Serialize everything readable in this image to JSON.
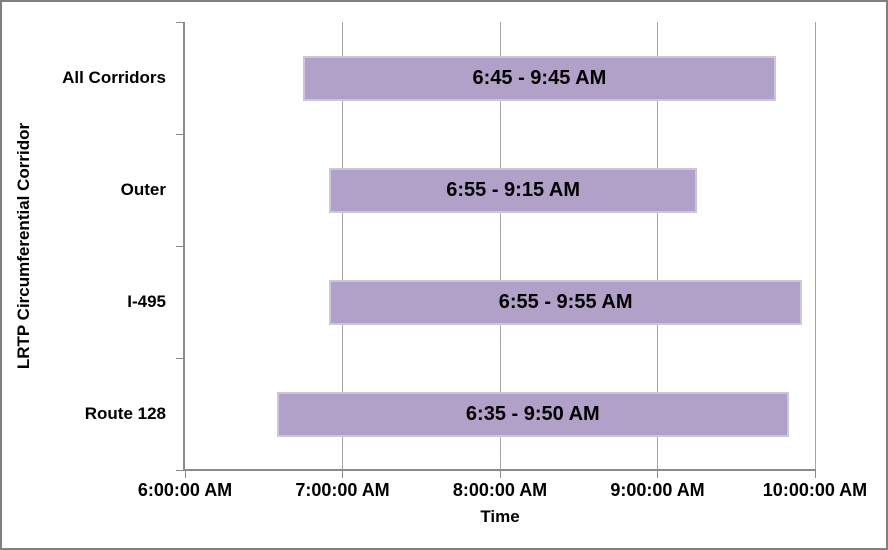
{
  "chart_data": {
    "type": "bar",
    "orientation": "horizontal-range",
    "xlabel": "Time",
    "ylabel": "LRTP Circumferential Corridor",
    "xlim_hours": [
      6,
      10
    ],
    "grid": "vertical-major",
    "legend": "none",
    "x_ticks": [
      {
        "hour": 6,
        "label": "6:00:00 AM"
      },
      {
        "hour": 7,
        "label": "7:00:00 AM"
      },
      {
        "hour": 8,
        "label": "8:00:00 AM"
      },
      {
        "hour": 9,
        "label": "9:00:00 AM"
      },
      {
        "hour": 10,
        "label": "10:00:00 AM"
      }
    ],
    "bars": [
      {
        "category": "All Corridors",
        "start_hour": 6.75,
        "end_hour": 9.75,
        "label": "6:45 - 9:45 AM"
      },
      {
        "category": "Outer",
        "start_hour": 6.9167,
        "end_hour": 9.25,
        "label": "6:55 - 9:15 AM"
      },
      {
        "category": "I-495",
        "start_hour": 6.9167,
        "end_hour": 9.9167,
        "label": "6:55 - 9:55 AM"
      },
      {
        "category": "Route 128",
        "start_hour": 6.5833,
        "end_hour": 9.8333,
        "label": "6:35 - 9:50 AM"
      }
    ],
    "colors": {
      "bar_fill": "#b1a0c7",
      "bar_border": "#cdc5dc",
      "gridline": "#a6a6a6",
      "axis_line": "#8a8a8a",
      "chart_border": "#808080",
      "text": "#000000",
      "background": "#ffffff"
    }
  }
}
